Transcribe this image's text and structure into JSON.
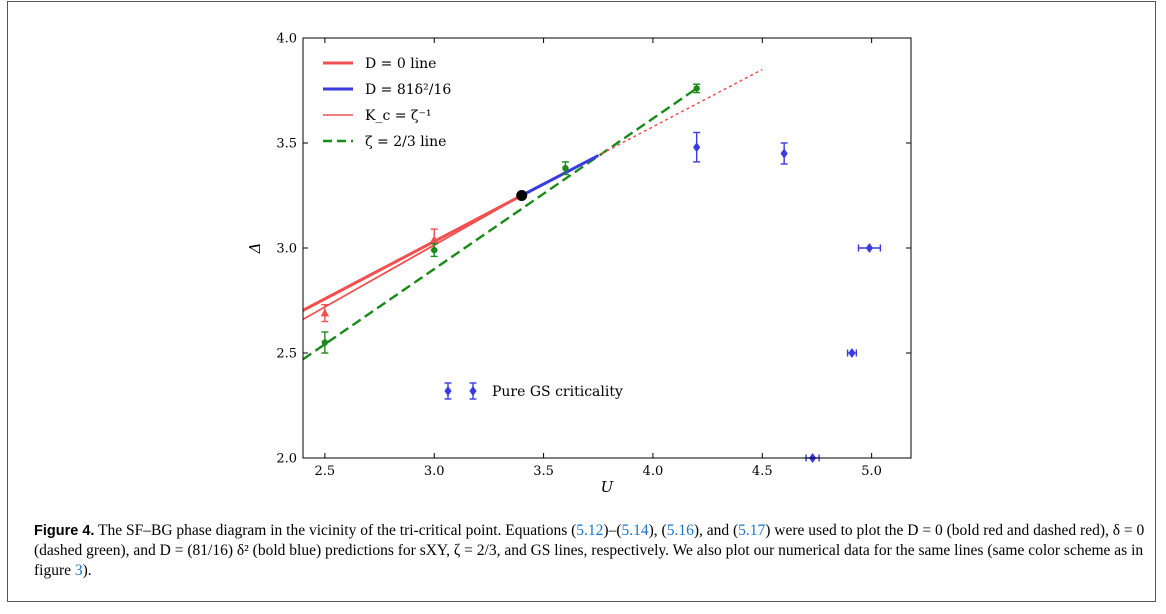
{
  "chart_data": {
    "type": "scatter",
    "xlabel": "U",
    "ylabel": "Δ",
    "xlim": [
      2.4,
      5.18
    ],
    "ylim": [
      2.0,
      4.0
    ],
    "x_ticks": [
      "2.5",
      "3.0",
      "3.5",
      "4.0",
      "4.5",
      "5.0"
    ],
    "y_ticks": [
      "2.0",
      "2.5",
      "3.0",
      "3.5",
      "4.0"
    ],
    "x_tick_values": [
      2.5,
      3.0,
      3.5,
      4.0,
      4.5,
      5.0
    ],
    "y_tick_values": [
      2.0,
      2.5,
      3.0,
      3.5,
      4.0
    ],
    "lines": [
      {
        "name": "D = 0 line",
        "color": "#f05050",
        "width": 3,
        "dash": "solid",
        "x": [
          2.4,
          3.4
        ],
        "y": [
          2.703,
          3.25
        ]
      },
      {
        "name": "D = 81δ²/16",
        "color": "#3a3ae0",
        "width": 3,
        "dash": "solid",
        "x": [
          3.4,
          3.75
        ],
        "y": [
          3.25,
          3.44
        ]
      },
      {
        "name": "K_c = ζ⁻¹",
        "color": "#f05050",
        "width": 1.8,
        "dash": "solid",
        "x": [
          2.4,
          3.4
        ],
        "y": [
          2.66,
          3.25
        ]
      },
      {
        "name": "K_c = ζ⁻¹ (dashed continuation)",
        "color": "#f05050",
        "width": 1.5,
        "dash": "dotted",
        "x": [
          3.4,
          4.5
        ],
        "y": [
          3.25,
          3.85
        ]
      },
      {
        "name": "ζ = 2/3 line",
        "color": "#1a8a1a",
        "width": 2.4,
        "dash": "dashed",
        "x": [
          2.4,
          4.2
        ],
        "y": [
          2.47,
          3.76
        ]
      }
    ],
    "points": [
      {
        "series": "red",
        "marker": "triangle",
        "color": "#f05050",
        "x": 2.5,
        "y": 2.69,
        "err_y": 0.04,
        "err_x": 0
      },
      {
        "series": "red",
        "marker": "triangle",
        "color": "#f05050",
        "x": 3.0,
        "y": 3.04,
        "err_y": 0.05,
        "err_x": 0
      },
      {
        "series": "green",
        "marker": "circle",
        "color": "#1a8a1a",
        "x": 2.5,
        "y": 2.55,
        "err_y": 0.05,
        "err_x": 0
      },
      {
        "series": "green",
        "marker": "circle",
        "color": "#1a8a1a",
        "x": 3.0,
        "y": 2.99,
        "err_y": 0.03,
        "err_x": 0
      },
      {
        "series": "green",
        "marker": "circle",
        "color": "#1a8a1a",
        "x": 3.6,
        "y": 3.38,
        "err_y": 0.03,
        "err_x": 0
      },
      {
        "series": "green",
        "marker": "circle",
        "color": "#1a8a1a",
        "x": 4.2,
        "y": 3.76,
        "err_y": 0.02,
        "err_x": 0
      },
      {
        "series": "blue",
        "marker": "diamond",
        "color": "#3a3ae0",
        "x": 4.2,
        "y": 3.48,
        "err_y": 0.07,
        "err_x": 0
      },
      {
        "series": "blue",
        "marker": "diamond",
        "color": "#3a3ae0",
        "x": 4.6,
        "y": 3.45,
        "err_y": 0.05,
        "err_x": 0
      },
      {
        "series": "blue",
        "marker": "diamond",
        "color": "#3a3ae0",
        "x": 4.99,
        "y": 3.0,
        "err_y": 0,
        "err_x": 0.05
      },
      {
        "series": "blue",
        "marker": "diamond",
        "color": "#3a3ae0",
        "x": 4.91,
        "y": 2.5,
        "err_y": 0,
        "err_x": 0.02
      },
      {
        "series": "blue",
        "marker": "diamond",
        "color": "#3a3ae0",
        "x": 4.73,
        "y": 2.0,
        "err_y": 0,
        "err_x": 0.03
      }
    ],
    "tricritical_point": {
      "x": 3.4,
      "y": 3.25,
      "color": "#000000"
    },
    "legend": {
      "placement": "top-left",
      "entries": [
        {
          "text": "D = 0 line",
          "color": "#f05050",
          "style": "bold"
        },
        {
          "text": "D = 81δ²/16",
          "color": "#3a3ae0",
          "style": "bold"
        },
        {
          "text": "K_c = ζ⁻¹",
          "color": "#f05050",
          "style": "thin"
        },
        {
          "text": "ζ = 2/3 line",
          "color": "#1a8a1a",
          "style": "dashed"
        }
      ]
    },
    "inset_legend": {
      "text": "Pure GS criticality",
      "color": "#3a3ae0",
      "marker": "diamond"
    }
  },
  "caption": {
    "label": "Figure 4.",
    "s1": " The SF–BG phase diagram in the vicinity of the tri-critical point. Equations (",
    "r1": "5.12",
    "s2": ")–(",
    "r2": "5.14",
    "s3": "), (",
    "r3": "5.16",
    "s4": "), and (",
    "r4": "5.17",
    "s5": ") were used to plot the D = 0 (bold red and dashed red), δ = 0 (dashed green), and D = (81/16) δ² (bold blue) predictions for sXY, ζ = 2/3, and GS lines, respectively. We also plot our numerical data for the same lines (same color scheme as in figure ",
    "r5": "3",
    "s6": ")."
  }
}
